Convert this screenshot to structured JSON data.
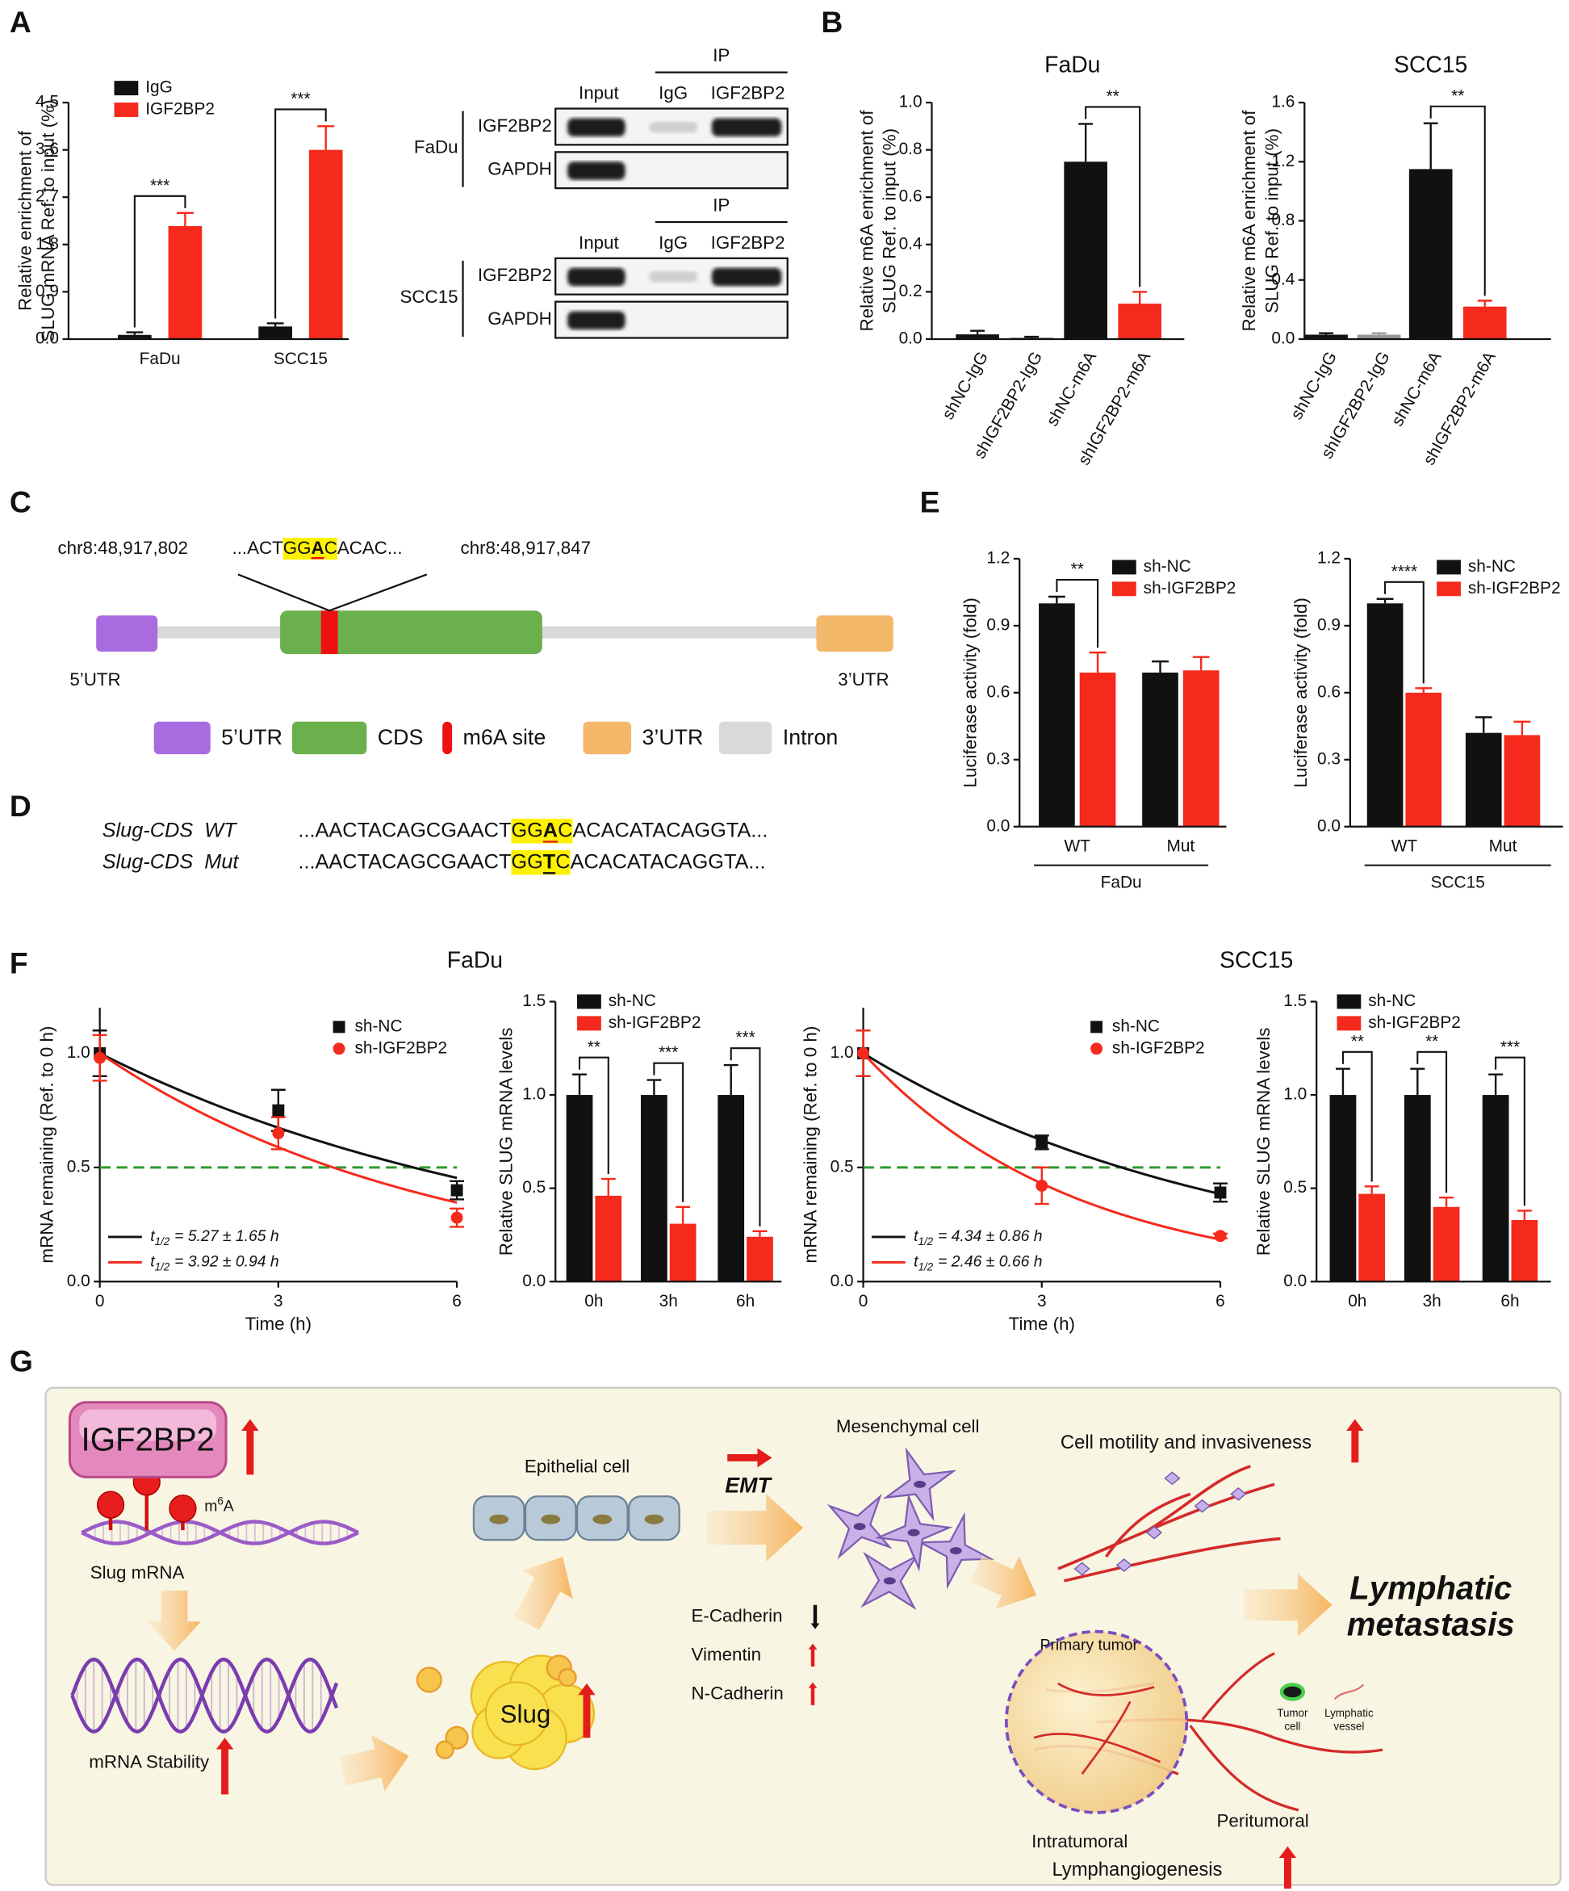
{
  "panel_labels": [
    "A",
    "B",
    "C",
    "D",
    "E",
    "F",
    "G"
  ],
  "chart_data": [
    {
      "type": "bar",
      "ylabel": [
        "Relative enrichment of",
        "SLUG mRNA  Ref. to input (%)"
      ],
      "categories": [
        "FaDu",
        "SCC15"
      ],
      "series": [
        {
          "name": "IgG",
          "color": "#111111",
          "values": [
            0.08,
            0.24
          ],
          "errors": [
            0.05,
            0.06
          ]
        },
        {
          "name": "IGF2BP2",
          "color": "#f52a1c",
          "values": [
            2.15,
            3.6
          ],
          "errors": [
            0.25,
            0.45
          ]
        }
      ],
      "ylim": [
        0,
        4.5
      ],
      "yticks": [
        {
          "value": 0,
          "label": "0.0"
        },
        0.9,
        1.8,
        2.7,
        3.6,
        4.5
      ],
      "significance": [
        "***",
        "***"
      ]
    },
    {
      "type": "bar",
      "title": "FaDu",
      "ylabel": [
        "Relative m6A enrichment of",
        "SLUG Ref. to input (%)"
      ],
      "categories": [
        "shNC-IgG",
        "shIGF2BP2-IgG",
        "shNC-m6A",
        "shIGF2BP2-m6A"
      ],
      "values": [
        0.02,
        0.005,
        0.75,
        0.15
      ],
      "errors": [
        0.015,
        0.005,
        0.16,
        0.05
      ],
      "colors": [
        "#111111",
        "#111111",
        "#111111",
        "#f52a1c"
      ],
      "ylim": [
        0,
        1
      ],
      "yticks": [
        {
          "value": 0,
          "label": "0.0"
        },
        0.2,
        0.4,
        0.6,
        0.8,
        {
          "value": 1,
          "label": "1.0"
        }
      ],
      "significance": [
        "**"
      ]
    },
    {
      "type": "bar",
      "title": "SCC15",
      "ylabel": [
        "Relative m6A enrichment of",
        "SLUG Ref. to input (%)"
      ],
      "categories": [
        "shNC-IgG",
        "shIGF2BP2-IgG",
        "shNC-m6A",
        "shIGF2BP2-m6A"
      ],
      "values": [
        0.03,
        0.03,
        1.15,
        0.22
      ],
      "errors": [
        0.01,
        0.01,
        0.31,
        0.04
      ],
      "colors": [
        "#111111",
        "#999999",
        "#111111",
        "#f52a1c"
      ],
      "ylim": [
        0,
        1.6
      ],
      "yticks": [
        {
          "value": 0,
          "label": "0.0"
        },
        0.4,
        0.8,
        1.2,
        1.6
      ],
      "significance": [
        "**"
      ]
    },
    {
      "type": "bar",
      "ylabel": [
        "Luciferase activity (fold)"
      ],
      "categories": [
        "WT",
        "Mut"
      ],
      "group_label": "FaDu",
      "series": [
        {
          "name": "sh-NC",
          "color": "#111111",
          "values": [
            1.0,
            0.69
          ],
          "errors": [
            0.03,
            0.05
          ]
        },
        {
          "name": "sh-IGF2BP2",
          "color": "#f52a1c",
          "values": [
            0.69,
            0.7
          ],
          "errors": [
            0.09,
            0.06
          ]
        }
      ],
      "ylim": [
        0,
        1.2
      ],
      "yticks": [
        {
          "value": 0,
          "label": "0.0"
        },
        0.3,
        0.6,
        0.9,
        1.2
      ],
      "significance": [
        "**"
      ]
    },
    {
      "type": "bar",
      "ylabel": [
        "Luciferase activity (fold)"
      ],
      "categories": [
        "WT",
        "Mut"
      ],
      "group_label": "SCC15",
      "series": [
        {
          "name": "sh-NC",
          "color": "#111111",
          "values": [
            1.0,
            0.42
          ],
          "errors": [
            0.02,
            0.07
          ]
        },
        {
          "name": "sh-IGF2BP2",
          "color": "#f52a1c",
          "values": [
            0.6,
            0.41
          ],
          "errors": [
            0.02,
            0.06
          ]
        }
      ],
      "ylim": [
        0,
        1.2
      ],
      "yticks": [
        {
          "value": 0,
          "label": "0.0"
        },
        0.3,
        0.6,
        0.9,
        1.2
      ],
      "significance": [
        "****"
      ]
    },
    {
      "type": "line",
      "title": "FaDu",
      "xlabel": "Time (h)",
      "ylabel": [
        "mRNA remaining (Ref. to 0 h)"
      ],
      "x": [
        0,
        3,
        6
      ],
      "xlim": [
        0,
        6
      ],
      "xticks": [
        0,
        3,
        6
      ],
      "ylim": [
        0,
        1.2
      ],
      "yticks": [
        {
          "value": 0,
          "label": "0.0"
        },
        0.5,
        {
          "value": 1,
          "label": "1.0"
        }
      ],
      "reference_line": {
        "value": 0.5,
        "color": "#2e9a2e"
      },
      "series": [
        {
          "name": "sh-NC",
          "color": "#111111",
          "marker": "square",
          "values": [
            1.0,
            0.75,
            0.4
          ],
          "errors": [
            0.1,
            0.09,
            0.04
          ],
          "fit": {
            "half_life": 5.27,
            "symbol": "t",
            "subscript": "1/2",
            "text": "= 5.27 ± 1.65 h"
          }
        },
        {
          "name": "sh-IGF2BP2",
          "color": "#f52a1c",
          "marker": "circle",
          "values": [
            0.98,
            0.65,
            0.28
          ],
          "errors": [
            0.1,
            0.07,
            0.04
          ],
          "fit": {
            "half_life": 3.92,
            "symbol": "t",
            "subscript": "1/2",
            "text": "= 3.92 ± 0.94 h"
          }
        }
      ]
    },
    {
      "type": "bar",
      "ylabel": [
        "Relative SLUG mRNA levels"
      ],
      "categories": [
        "0h",
        "3h",
        "6h"
      ],
      "series": [
        {
          "name": "sh-NC",
          "color": "#111111",
          "values": [
            1,
            1,
            1
          ],
          "errors": [
            0.11,
            0.08,
            0.16
          ]
        },
        {
          "name": "sh-IGF2BP2",
          "color": "#f52a1c",
          "values": [
            0.46,
            0.31,
            0.24
          ],
          "errors": [
            0.09,
            0.09,
            0.03
          ]
        }
      ],
      "ylim": [
        0,
        1.5
      ],
      "yticks": [
        {
          "value": 0,
          "label": "0.0"
        },
        0.5,
        {
          "value": 1,
          "label": "1.0"
        },
        1.5
      ],
      "significance": [
        "**",
        "***",
        "***"
      ]
    },
    {
      "type": "line",
      "title": "SCC15",
      "xlabel": "Time (h)",
      "ylabel": [
        "mRNA remaining (Ref. to 0 h)"
      ],
      "x": [
        0,
        3,
        6
      ],
      "xlim": [
        0,
        6
      ],
      "xticks": [
        0,
        3,
        6
      ],
      "ylim": [
        0,
        1.2
      ],
      "yticks": [
        {
          "value": 0,
          "label": "0.0"
        },
        0.5,
        {
          "value": 1,
          "label": "1.0"
        }
      ],
      "reference_line": {
        "value": 0.5,
        "color": "#2e9a2e"
      },
      "series": [
        {
          "name": "sh-NC",
          "color": "#111111",
          "marker": "square",
          "values": [
            1.0,
            0.61,
            0.39
          ],
          "errors": [
            0.1,
            0.03,
            0.04
          ],
          "fit": {
            "half_life": 4.34,
            "symbol": "t",
            "subscript": "1/2",
            "text": "= 4.34 ± 0.86 h"
          }
        },
        {
          "name": "sh-IGF2BP2",
          "color": "#f52a1c",
          "marker": "circle",
          "values": [
            1.0,
            0.42,
            0.2
          ],
          "errors": [
            0.1,
            0.08,
            0.01
          ],
          "fit": {
            "half_life": 2.46,
            "symbol": "t",
            "subscript": "1/2",
            "text": "= 2.46 ± 0.66 h"
          }
        }
      ]
    },
    {
      "type": "bar",
      "ylabel": [
        "Relative SLUG mRNA levels"
      ],
      "categories": [
        "0h",
        "3h",
        "6h"
      ],
      "series": [
        {
          "name": "sh-NC",
          "color": "#111111",
          "values": [
            1,
            1,
            1
          ],
          "errors": [
            0.14,
            0.14,
            0.11
          ]
        },
        {
          "name": "sh-IGF2BP2",
          "color": "#f52a1c",
          "values": [
            0.47,
            0.4,
            0.33
          ],
          "errors": [
            0.04,
            0.05,
            0.05
          ]
        }
      ],
      "ylim": [
        0,
        1.5
      ],
      "yticks": [
        {
          "value": 0,
          "label": "0.0"
        },
        0.5,
        {
          "value": 1,
          "label": "1.0"
        },
        1.5
      ],
      "significance": [
        "**",
        "**",
        "***"
      ]
    }
  ],
  "blots": [
    {
      "cell_line": "FaDu",
      "ip": "IP",
      "lanes": [
        "Input",
        "IgG",
        "IGF2BP2"
      ],
      "rows": [
        "IGF2BP2",
        "GAPDH"
      ]
    },
    {
      "cell_line": "SCC15",
      "ip": "IP",
      "lanes": [
        "Input",
        "IgG",
        "IGF2BP2"
      ],
      "rows": [
        "IGF2BP2",
        "GAPDH"
      ]
    }
  ],
  "gene_diagram": {
    "start": "chr8:48,917,802",
    "end": "chr8:48,917,847",
    "motif": {
      "before": "...ACT",
      "hl_pre": "GG",
      "site": "A",
      "hl_post": "C",
      "after": "ACAC..."
    },
    "left_label": "5’UTR",
    "right_label": "3’UTR",
    "legend": [
      {
        "label": "5’UTR",
        "color": "#a86be0"
      },
      {
        "label": "CDS",
        "color": "#6ab04c"
      },
      {
        "label": "m6A site",
        "color": "#ee1111"
      },
      {
        "label": "3’UTR",
        "color": "#f4b86b"
      },
      {
        "label": "Intron",
        "color": "#d9d9d9"
      }
    ]
  },
  "sequences": [
    {
      "name": "Slug-CDS  WT",
      "before": "...AACTACAGCGAACT",
      "hl_pre": "GG",
      "site": "A",
      "hl_post": "C",
      "after": "ACACATACAGGTA...",
      "site_color": "#e02020"
    },
    {
      "name": "Slug-CDS  Mut",
      "before": "...AACTACAGCGAACT",
      "hl_pre": "GG",
      "site": "T",
      "hl_post": "C",
      "after": "ACACATACAGGTA...",
      "site_color": "#111111"
    }
  ],
  "schematic": {
    "protein": "IGF2BP2",
    "m6a": {
      "base": "m",
      "sup": "6",
      "rest": "A"
    },
    "mrna": "Slug mRNA",
    "stability": "mRNA Stability",
    "slug": "Slug",
    "epithelial": "Epithelial cell",
    "emt": "EMT",
    "mesenchymal": "Mesenchymal cell",
    "markers": [
      "E-Cadherin",
      "Vimentin",
      "N-Cadherin"
    ],
    "motility": "Cell motility and invasiveness",
    "outcome": [
      "Lymphatic",
      "metastasis"
    ],
    "primary_tumor": "Primary tumor",
    "icons": [
      {
        "label": [
          "Tumor",
          "cell"
        ]
      },
      {
        "label": [
          "Lymphatic",
          "vessel"
        ]
      }
    ],
    "intratumoral": "Intratumoral",
    "peritumoral": "Peritumoral",
    "lymphangiogenesis": "Lymphangiogenesis"
  }
}
